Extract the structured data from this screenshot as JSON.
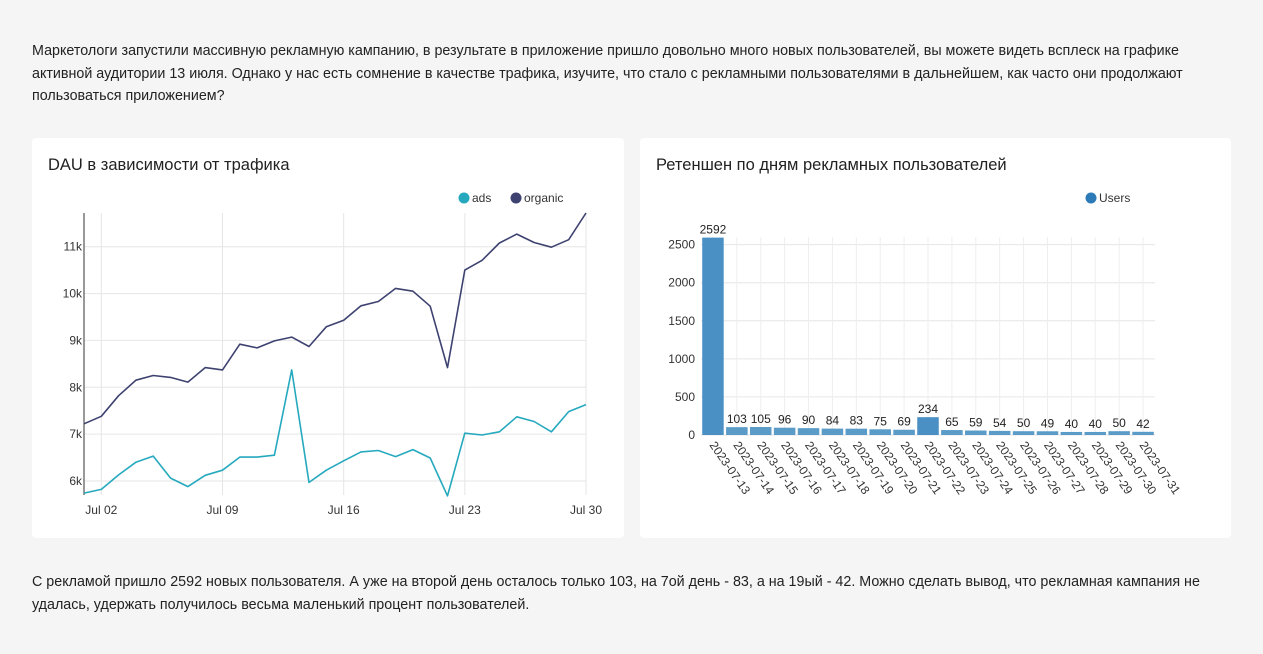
{
  "intro_text": "Маркетологи запустили массивную рекламную кампанию, в результате в приложение пришло довольно много новых пользователей, вы можете видеть всплеск на графике активной аудитории 13 июля. Однако у нас есть сомнение в качестве трафика, изучите, что стало с рекламными пользователями в дальнейшем, как часто они продолжают пользоваться приложением?",
  "conclusion_text": "С рекламой пришло 2592 новых пользователя. А уже на второй день осталось только 103, на 7ой день - 83, а на 19ый - 42. Можно сделать вывод, что рекламная кампания не удалась, удержать получилось весьма маленький процент пользователей.",
  "colors": {
    "ads": "#26a9be",
    "organic": "#3d4270",
    "bar": "#5b9bc8",
    "bar_highlight": "#4a90c4",
    "legend_users": "#2d7ab8"
  },
  "chart_data": [
    {
      "type": "line",
      "title": "DAU в зависимости от трафика",
      "x": [
        "2023-07-01",
        "2023-07-02",
        "2023-07-03",
        "2023-07-04",
        "2023-07-05",
        "2023-07-06",
        "2023-07-07",
        "2023-07-08",
        "2023-07-09",
        "2023-07-10",
        "2023-07-11",
        "2023-07-12",
        "2023-07-13",
        "2023-07-14",
        "2023-07-15",
        "2023-07-16",
        "2023-07-17",
        "2023-07-18",
        "2023-07-19",
        "2023-07-20",
        "2023-07-21",
        "2023-07-22",
        "2023-07-23",
        "2023-07-24",
        "2023-07-25",
        "2023-07-26",
        "2023-07-27",
        "2023-07-28",
        "2023-07-29",
        "2023-07-30"
      ],
      "x_ticks": [
        "Jul 02",
        "Jul 09",
        "Jul 16",
        "Jul 23",
        "Jul 30"
      ],
      "y_ticks": [
        "6k",
        "7k",
        "8k",
        "9k",
        "10k",
        "11k"
      ],
      "ylim": [
        5700,
        11720
      ],
      "legend": "top-right",
      "series": [
        {
          "name": "ads",
          "values": [
            5740,
            5820,
            6130,
            6400,
            6530,
            6060,
            5880,
            6120,
            6230,
            6510,
            6510,
            6550,
            8370,
            5970,
            6230,
            6430,
            6620,
            6650,
            6520,
            6670,
            6490,
            5680,
            7020,
            6980,
            7050,
            7370,
            7270,
            7050,
            7480,
            7630
          ]
        },
        {
          "name": "organic",
          "values": [
            7220,
            7380,
            7820,
            8150,
            8250,
            8210,
            8110,
            8420,
            8370,
            8920,
            8840,
            8990,
            9070,
            8870,
            9290,
            9430,
            9740,
            9830,
            10110,
            10050,
            9730,
            8420,
            10500,
            10710,
            11080,
            11270,
            11090,
            10990,
            11150,
            11720
          ]
        }
      ]
    },
    {
      "type": "bar",
      "title": "Ретеншен по дням рекламных пользователей",
      "categories": [
        "2023-07-13",
        "2023-07-14",
        "2023-07-15",
        "2023-07-16",
        "2023-07-17",
        "2023-07-18",
        "2023-07-19",
        "2023-07-20",
        "2023-07-21",
        "2023-07-22",
        "2023-07-23",
        "2023-07-24",
        "2023-07-25",
        "2023-07-26",
        "2023-07-27",
        "2023-07-28",
        "2023-07-29",
        "2023-07-30",
        "2023-07-31"
      ],
      "series": [
        {
          "name": "Users",
          "values": [
            2592,
            103,
            105,
            96,
            90,
            84,
            83,
            75,
            69,
            234,
            65,
            59,
            54,
            50,
            49,
            40,
            40,
            50,
            42
          ]
        }
      ],
      "y_ticks": [
        "0",
        "500",
        "1000",
        "1500",
        "2000",
        "2500"
      ],
      "ylim": [
        0,
        2600
      ],
      "legend": "top-right"
    }
  ]
}
